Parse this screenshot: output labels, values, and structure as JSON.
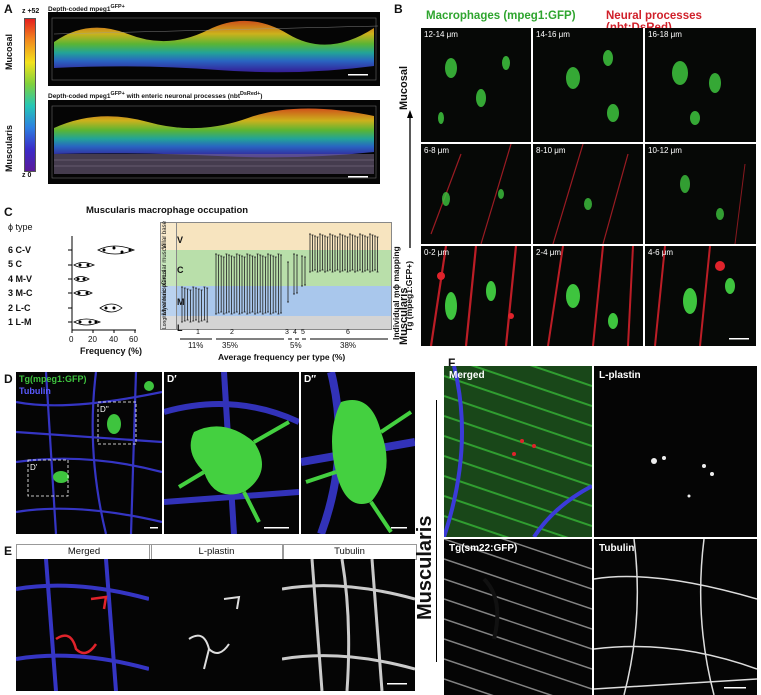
{
  "panels": {
    "A": {
      "letter": "A",
      "title1": "Depth-coded mpeg1",
      "title1_sup": "GFP+",
      "title2": "Depth-coded mpeg1",
      "title2_sup": "GFP+",
      "title2_rest": " with enteric neuronal processes (nbt",
      "title2_sup2": "DsRed+",
      "title2_end": ")",
      "z_top": "z +52",
      "z_bottom": "z 0",
      "mucosal": "Mucosal",
      "muscularis": "Muscularis"
    },
    "B": {
      "letter": "B",
      "header_green": "Macrophages (mpeg1:GFP)",
      "header_red": "Neural processes (nbt:DsRed)",
      "mucosal": "Mucosal",
      "muscularis": "Muscularis",
      "tiles": [
        "12-14 μm",
        "14-16 μm",
        "16-18 μm",
        "6-8 μm",
        "8-10 μm",
        "10-12 μm",
        "0-2 μm",
        "2-4 μm",
        "4-6 μm"
      ]
    },
    "C": {
      "letter": "C",
      "title": "Muscularis macrophage occupation",
      "phi_type": "ϕ type",
      "rows": [
        {
          "num": "6",
          "label": "C-V"
        },
        {
          "num": "5",
          "label": "C"
        },
        {
          "num": "4",
          "label": "M-V"
        },
        {
          "num": "3",
          "label": "M-C"
        },
        {
          "num": "2",
          "label": "L-C"
        },
        {
          "num": "1",
          "label": "L-M"
        }
      ],
      "x_ticks": [
        "0",
        "20",
        "40",
        "60"
      ],
      "x_label": "Frequency (%)",
      "layers": [
        {
          "letter": "V",
          "side": "Villar base"
        },
        {
          "letter": "C",
          "side": "Circular muscle"
        },
        {
          "letter": "M",
          "side": "Myenteric plexus"
        },
        {
          "letter": "L",
          "side": "Longitudinal muscle"
        }
      ],
      "groups": [
        "1",
        "2",
        "3",
        "4",
        "5",
        "6"
      ],
      "percents": [
        "11%",
        "35%",
        "5%",
        "38%"
      ],
      "avg_label": "Average frequency per type (%)",
      "right_label1": "Individual mϕ mapping",
      "right_label2": "Tg (mpeg1:GFP+)"
    },
    "D": {
      "letter": "D",
      "label_green": "Tg(mpeg1:GFP)",
      "label_blue": "Tubulin",
      "box1": "D'",
      "box2": "D''",
      "sub1": "D′",
      "sub2": "D″"
    },
    "E": {
      "letter": "E",
      "merged": "Merged",
      "lplastin": "L-plastin",
      "tubulin": "Tubulin"
    },
    "F": {
      "letter": "F",
      "side": "Muscularis",
      "merged": "Merged",
      "lplastin": "L-plastin",
      "sm22": "Tg(sm22:GFP)",
      "tubulin": "Tubulin"
    }
  },
  "colors": {
    "green": "#3ec43e",
    "red": "#e0232b",
    "blue": "#3b3bd9",
    "tan": "#f7e4bf",
    "lightgreen": "#b9dfaa",
    "lightblue": "#a9c7ec",
    "lightgray": "#d4d4d4"
  }
}
